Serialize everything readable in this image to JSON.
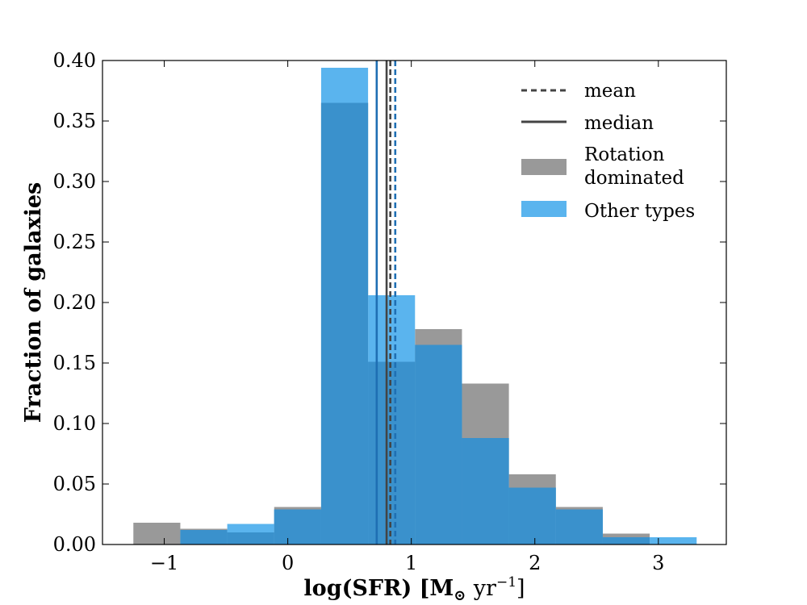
{
  "chart_data": {
    "type": "bar",
    "xlabel": "log(SFR) [M",
    "xlabel_sub": "⊙",
    "xlabel_unit": "yr",
    "xlabel_exp": "−1",
    "xlabel_close": "]",
    "ylabel": "Fraction of galaxies",
    "xlim": [
      -1.5,
      3.55
    ],
    "ylim": [
      0,
      0.4
    ],
    "xticks": [
      -1,
      0,
      1,
      2,
      3
    ],
    "xtick_labels": [
      "−1",
      "0",
      "1",
      "2",
      "3"
    ],
    "yticks": [
      0.0,
      0.05,
      0.1,
      0.15,
      0.2,
      0.25,
      0.3,
      0.35,
      0.4
    ],
    "ytick_labels": [
      "0.00",
      "0.05",
      "0.10",
      "0.15",
      "0.20",
      "0.25",
      "0.30",
      "0.35",
      "0.40"
    ],
    "grid": false,
    "legend_position": "top-right",
    "legend": [
      {
        "label": "mean",
        "kind": "dashed-line"
      },
      {
        "label": "median",
        "kind": "solid-line"
      },
      {
        "label": "Rotation",
        "label2": "dominated",
        "kind": "patch",
        "color": "#999999"
      },
      {
        "label": "Other types",
        "kind": "patch",
        "color": "#5ab4ee"
      }
    ],
    "series": [
      {
        "name": "Rotation dominated",
        "color": "#999999",
        "bins": [
          {
            "x0": -1.25,
            "x1": -0.87,
            "value": 0.018
          },
          {
            "x0": -0.87,
            "x1": -0.49,
            "value": 0.013
          },
          {
            "x0": -0.49,
            "x1": -0.11,
            "value": 0.01
          },
          {
            "x0": -0.11,
            "x1": 0.27,
            "value": 0.031
          },
          {
            "x0": 0.27,
            "x1": 0.65,
            "value": 0.365
          },
          {
            "x0": 0.65,
            "x1": 1.03,
            "value": 0.151
          },
          {
            "x0": 1.03,
            "x1": 1.41,
            "value": 0.178
          },
          {
            "x0": 1.41,
            "x1": 1.79,
            "value": 0.133
          },
          {
            "x0": 1.79,
            "x1": 2.17,
            "value": 0.058
          },
          {
            "x0": 2.17,
            "x1": 2.55,
            "value": 0.031
          },
          {
            "x0": 2.55,
            "x1": 2.93,
            "value": 0.009
          }
        ]
      },
      {
        "name": "Other types",
        "color": "#5ab4ee",
        "bins": [
          {
            "x0": -0.87,
            "x1": -0.49,
            "value": 0.012
          },
          {
            "x0": -0.49,
            "x1": -0.11,
            "value": 0.017
          },
          {
            "x0": -0.11,
            "x1": 0.27,
            "value": 0.029
          },
          {
            "x0": 0.27,
            "x1": 0.65,
            "value": 0.394
          },
          {
            "x0": 0.65,
            "x1": 1.03,
            "value": 0.206
          },
          {
            "x0": 1.03,
            "x1": 1.41,
            "value": 0.165
          },
          {
            "x0": 1.41,
            "x1": 1.79,
            "value": 0.088
          },
          {
            "x0": 1.79,
            "x1": 2.17,
            "value": 0.047
          },
          {
            "x0": 2.17,
            "x1": 2.55,
            "value": 0.029
          },
          {
            "x0": 2.55,
            "x1": 2.93,
            "value": 0.006
          },
          {
            "x0": 2.93,
            "x1": 3.31,
            "value": 0.006
          }
        ]
      }
    ],
    "overlap_color": "#3a91cc",
    "vlines": [
      {
        "stat": "median",
        "series": "Other types",
        "x": 0.72,
        "style": "solid",
        "color": "#1f6fb3"
      },
      {
        "stat": "median",
        "series": "Rotation dominated",
        "x": 0.8,
        "style": "solid",
        "color": "#444444"
      },
      {
        "stat": "mean",
        "series": "Rotation dominated",
        "x": 0.83,
        "style": "dashed",
        "color": "#444444"
      },
      {
        "stat": "mean",
        "series": "Other types",
        "x": 0.87,
        "style": "dashed",
        "color": "#1f6fb3"
      }
    ]
  }
}
